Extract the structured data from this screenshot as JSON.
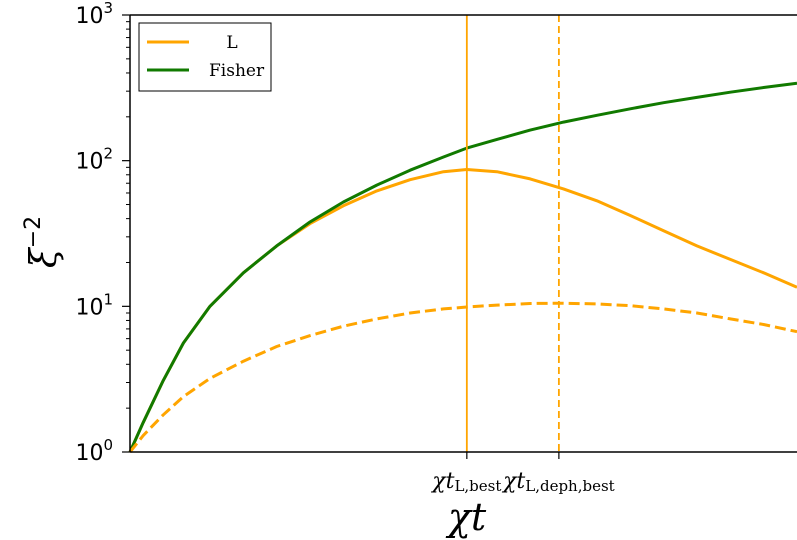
{
  "chart_data": {
    "type": "line",
    "title": "",
    "xlabel": "χt",
    "ylabel": {
      "base": "ξ",
      "exponent": "−2"
    },
    "yscale": "log",
    "ylim": [
      1,
      1000
    ],
    "xlim": [
      0,
      1
    ],
    "grid": false,
    "legend_position": "top-left",
    "yticks": [
      {
        "value": 1,
        "base": "10",
        "exp": "0"
      },
      {
        "value": 10,
        "base": "10",
        "exp": "1"
      },
      {
        "value": 100,
        "base": "10",
        "exp": "2"
      },
      {
        "value": 1000,
        "base": "10",
        "exp": "3"
      }
    ],
    "xticks": [
      {
        "value": 0.505,
        "main": "χt",
        "sub": "L,best"
      },
      {
        "value": 0.643,
        "main": "χt",
        "sub": "L,deph,best"
      }
    ],
    "vlines": [
      {
        "x": 0.505,
        "color": "#FFA500",
        "style": "solid"
      },
      {
        "x": 0.643,
        "color": "#FFA500",
        "style": "dashed"
      }
    ],
    "series": [
      {
        "name": "L",
        "color": "#FFA500",
        "style": "solid",
        "points": [
          [
            0,
            1
          ],
          [
            0.02,
            1.6
          ],
          [
            0.05,
            3.1
          ],
          [
            0.08,
            5.6
          ],
          [
            0.12,
            10
          ],
          [
            0.17,
            17
          ],
          [
            0.22,
            26
          ],
          [
            0.27,
            37
          ],
          [
            0.32,
            49
          ],
          [
            0.37,
            62
          ],
          [
            0.42,
            74
          ],
          [
            0.47,
            84
          ],
          [
            0.505,
            87
          ],
          [
            0.55,
            84
          ],
          [
            0.6,
            75
          ],
          [
            0.65,
            64
          ],
          [
            0.7,
            53
          ],
          [
            0.75,
            42
          ],
          [
            0.8,
            33
          ],
          [
            0.85,
            26
          ],
          [
            0.9,
            21
          ],
          [
            0.95,
            17
          ],
          [
            1.0,
            13.5
          ]
        ]
      },
      {
        "name": "Fisher",
        "color": "#117A00",
        "style": "solid",
        "points": [
          [
            0,
            1
          ],
          [
            0.02,
            1.6
          ],
          [
            0.05,
            3.1
          ],
          [
            0.08,
            5.6
          ],
          [
            0.12,
            10
          ],
          [
            0.17,
            17
          ],
          [
            0.22,
            26
          ],
          [
            0.27,
            38
          ],
          [
            0.32,
            52
          ],
          [
            0.37,
            68
          ],
          [
            0.42,
            86
          ],
          [
            0.47,
            106
          ],
          [
            0.505,
            122
          ],
          [
            0.55,
            140
          ],
          [
            0.6,
            162
          ],
          [
            0.65,
            184
          ],
          [
            0.7,
            205
          ],
          [
            0.75,
            227
          ],
          [
            0.8,
            250
          ],
          [
            0.85,
            272
          ],
          [
            0.9,
            295
          ],
          [
            0.95,
            318
          ],
          [
            1.0,
            340
          ]
        ]
      },
      {
        "name": "",
        "color": "#FFA500",
        "style": "dashed",
        "points": [
          [
            0,
            1
          ],
          [
            0.02,
            1.3
          ],
          [
            0.05,
            1.8
          ],
          [
            0.08,
            2.4
          ],
          [
            0.12,
            3.2
          ],
          [
            0.17,
            4.2
          ],
          [
            0.22,
            5.3
          ],
          [
            0.27,
            6.3
          ],
          [
            0.32,
            7.3
          ],
          [
            0.37,
            8.2
          ],
          [
            0.42,
            9
          ],
          [
            0.47,
            9.6
          ],
          [
            0.505,
            9.9
          ],
          [
            0.55,
            10.2
          ],
          [
            0.6,
            10.45
          ],
          [
            0.643,
            10.5
          ],
          [
            0.7,
            10.4
          ],
          [
            0.75,
            10.1
          ],
          [
            0.8,
            9.6
          ],
          [
            0.85,
            9
          ],
          [
            0.9,
            8.2
          ],
          [
            0.95,
            7.5
          ],
          [
            1.0,
            6.7
          ]
        ]
      }
    ],
    "legend": [
      {
        "label": "L",
        "color": "#FFA500"
      },
      {
        "label": "Fisher",
        "color": "#117A00"
      }
    ]
  }
}
